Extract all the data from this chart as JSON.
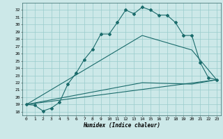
{
  "title": "",
  "xlabel": "Humidex (Indice chaleur)",
  "bg_color": "#cce8e8",
  "grid_color": "#99cccc",
  "line_color": "#1a6b6b",
  "xlim": [
    -0.5,
    23.5
  ],
  "ylim": [
    17.5,
    33.0
  ],
  "xticks": [
    0,
    1,
    2,
    3,
    4,
    5,
    6,
    7,
    8,
    9,
    10,
    11,
    12,
    13,
    14,
    15,
    16,
    17,
    18,
    19,
    20,
    21,
    22,
    23
  ],
  "yticks": [
    18,
    19,
    20,
    21,
    22,
    23,
    24,
    25,
    26,
    27,
    28,
    29,
    30,
    31,
    32
  ],
  "curve1_x": [
    0,
    1,
    2,
    3,
    4,
    5,
    6,
    7,
    8,
    9,
    10,
    11,
    12,
    13,
    14,
    15,
    16,
    17,
    18,
    19,
    20,
    21,
    22,
    23
  ],
  "curve1_y": [
    19.0,
    18.9,
    18.1,
    18.5,
    19.3,
    21.8,
    23.3,
    25.2,
    26.6,
    28.7,
    28.7,
    30.3,
    32.0,
    31.5,
    32.4,
    32.0,
    31.3,
    31.3,
    30.3,
    28.5,
    28.5,
    24.8,
    22.7,
    22.4
  ],
  "curve2_x": [
    0,
    23
  ],
  "curve2_y": [
    19.0,
    22.4
  ],
  "curve3_x": [
    0,
    14,
    20,
    23
  ],
  "curve3_y": [
    19.0,
    28.5,
    26.5,
    22.4
  ],
  "curve4_x": [
    0,
    14,
    20,
    23
  ],
  "curve4_y": [
    19.0,
    22.0,
    21.8,
    22.4
  ]
}
